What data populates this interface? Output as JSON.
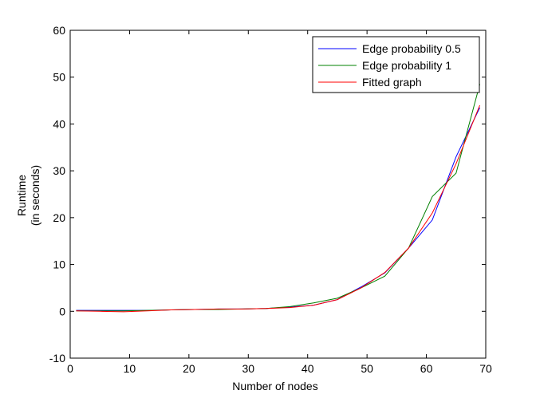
{
  "chart_data": {
    "type": "line",
    "title": "",
    "xlabel": "Number of nodes",
    "ylabel_lines": [
      "Runtime",
      "(in seconds)"
    ],
    "xlim": [
      0,
      70
    ],
    "ylim": [
      -10,
      60
    ],
    "xticks": [
      0,
      10,
      20,
      30,
      40,
      50,
      60,
      70
    ],
    "yticks": [
      -10,
      0,
      10,
      20,
      30,
      40,
      50,
      60
    ],
    "grid": false,
    "legend_position": "top-right",
    "series": [
      {
        "name": "Edge probability 0.5",
        "color": "#0000ff",
        "x": [
          1,
          5,
          9,
          13,
          17,
          21,
          25,
          29,
          33,
          37,
          41,
          45,
          49,
          53,
          57,
          61,
          65,
          69
        ],
        "y": [
          0.2,
          0.2,
          0.2,
          0.2,
          0.3,
          0.4,
          0.5,
          0.5,
          0.6,
          0.9,
          1.3,
          2.5,
          5.2,
          8.2,
          13.5,
          19.5,
          33.0,
          43.5
        ]
      },
      {
        "name": "Edge probability 1",
        "color": "#008000",
        "x": [
          1,
          5,
          9,
          13,
          17,
          21,
          25,
          29,
          33,
          37,
          41,
          45,
          49,
          53,
          57,
          61,
          65,
          69
        ],
        "y": [
          0.1,
          0.1,
          0.1,
          0.2,
          0.3,
          0.4,
          0.4,
          0.5,
          0.6,
          1.0,
          1.8,
          2.8,
          5.0,
          7.5,
          13.5,
          24.5,
          29.5,
          48.5
        ]
      },
      {
        "name": "Fitted graph",
        "color": "#ff0000",
        "x": [
          1,
          5,
          9,
          13,
          17,
          21,
          25,
          29,
          33,
          37,
          41,
          45,
          49,
          53,
          57,
          61,
          65,
          69
        ],
        "y": [
          0.1,
          0.0,
          -0.1,
          0.1,
          0.3,
          0.4,
          0.5,
          0.5,
          0.6,
          0.8,
          1.3,
          2.5,
          5.0,
          8.3,
          13.5,
          21.0,
          31.5,
          44.0
        ]
      }
    ]
  }
}
